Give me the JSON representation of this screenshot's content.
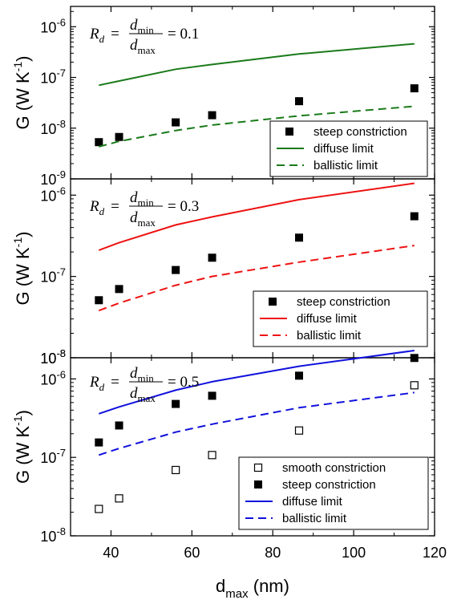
{
  "chart_data": {
    "type": "scatter",
    "x_axis": {
      "label_main": "d",
      "label_sub": "max",
      "label_unit": " (nm)",
      "range": [
        30,
        120
      ],
      "ticks": [
        40,
        60,
        80,
        100,
        120
      ],
      "tick_labels": [
        "40",
        "60",
        "80",
        "100",
        "120"
      ]
    },
    "y_axis": {
      "label_prefix": "G (W K",
      "label_sup": "-1",
      "label_suffix": ")",
      "scale": "log"
    },
    "panels": [
      {
        "id": "top",
        "ylim_exp": [
          -9,
          -5.6
        ],
        "tick_exps": [
          -9,
          -8,
          -7,
          -6
        ],
        "tick_base": "10",
        "tick_sups": [
          "-9",
          "-8",
          "-7",
          "-6"
        ],
        "equation": {
          "R": "R",
          "R_sub": "d",
          "eq": "=",
          "num": "d",
          "num_sub": "min",
          "den": "d",
          "den_sub": "max",
          "value": "= 0.1"
        },
        "color": "#1a7a1a",
        "series": [
          {
            "name": "steep constriction",
            "kind": "filled-square",
            "x": [
              37,
              42,
              56,
              65,
              86.5,
              115
            ],
            "y": [
              5.3e-09,
              6.7e-09,
              1.3e-08,
              1.8e-08,
              3.4e-08,
              6.1e-08
            ]
          },
          {
            "name": "diffuse limit",
            "kind": "solid-line",
            "x": [
              37,
              42,
              56,
              65,
              86.5,
              115
            ],
            "y": [
              7e-08,
              8.5e-08,
              1.45e-07,
              1.8e-07,
              2.9e-07,
              4.6e-07
            ]
          },
          {
            "name": "ballistic limit",
            "kind": "dashed-line",
            "x": [
              37,
              42,
              56,
              65,
              86.5,
              115
            ],
            "y": [
              4.3e-09,
              5.5e-09,
              9e-09,
              1.15e-08,
              1.75e-08,
              2.7e-08
            ]
          }
        ]
      },
      {
        "id": "middle",
        "ylim_exp": [
          -8,
          -5.8
        ],
        "tick_exps": [
          -8,
          -7,
          -6
        ],
        "tick_base": "10",
        "tick_sups": [
          "-8",
          "-7",
          "-6"
        ],
        "equation": {
          "R": "R",
          "R_sub": "d",
          "eq": "=",
          "num": "d",
          "num_sub": "min",
          "den": "d",
          "den_sub": "max",
          "value": "= 0.3"
        },
        "color": "#ee1111",
        "series": [
          {
            "name": "steep constriction",
            "kind": "filled-square",
            "x": [
              37,
              42,
              56,
              65,
              86.5,
              115
            ],
            "y": [
              5.1e-08,
              7e-08,
              1.2e-07,
              1.7e-07,
              3e-07,
              5.5e-07
            ]
          },
          {
            "name": "diffuse limit",
            "kind": "solid-line",
            "x": [
              37,
              42,
              56,
              65,
              86.5,
              115
            ],
            "y": [
              2.1e-07,
              2.6e-07,
              4.3e-07,
              5.4e-07,
              8.8e-07,
              1.4e-06
            ]
          },
          {
            "name": "ballistic limit",
            "kind": "dashed-line",
            "x": [
              37,
              42,
              56,
              65,
              86.5,
              115
            ],
            "y": [
              3.8e-08,
              4.7e-08,
              7.8e-08,
              1e-07,
              1.5e-07,
              2.4e-07
            ]
          }
        ]
      },
      {
        "id": "bottom",
        "ylim_exp": [
          -8,
          -5.73
        ],
        "tick_exps": [
          -8,
          -7,
          -6
        ],
        "tick_base": "10",
        "tick_sups": [
          "-8",
          "-7",
          "-6"
        ],
        "extra_top_tick": {
          "base": "10",
          "sup": "-8"
        },
        "equation": {
          "R": "R",
          "R_sub": "d",
          "eq": "=",
          "num": "d",
          "num_sub": "min",
          "den": "d",
          "den_sub": "max",
          "value": "= 0.5"
        },
        "color": "#1111dd",
        "series": [
          {
            "name": "smooth constriction",
            "kind": "open-square",
            "x": [
              37,
              42,
              56,
              65,
              86.5,
              115
            ],
            "y": [
              2.2e-08,
              3e-08,
              6.9e-08,
              1.07e-07,
              2.2e-07,
              8.3e-07
            ]
          },
          {
            "name": "steep constriction",
            "kind": "filled-square",
            "x": [
              37,
              42,
              56,
              65,
              86.5,
              115
            ],
            "y": [
              1.55e-07,
              2.55e-07,
              4.8e-07,
              6.1e-07,
              1.1e-06,
              1.85e-06
            ]
          },
          {
            "name": "diffuse limit",
            "kind": "solid-line",
            "x": [
              37,
              42,
              56,
              65,
              86.5,
              115
            ],
            "y": [
              3.6e-07,
              4.4e-07,
              7.2e-07,
              9.2e-07,
              1.45e-06,
              2.3e-06
            ]
          },
          {
            "name": "ballistic limit",
            "kind": "dashed-line",
            "x": [
              37,
              42,
              56,
              65,
              86.5,
              115
            ],
            "y": [
              1.07e-07,
              1.3e-07,
              2.1e-07,
              2.65e-07,
              4.3e-07,
              6.7e-07
            ]
          }
        ]
      }
    ]
  }
}
